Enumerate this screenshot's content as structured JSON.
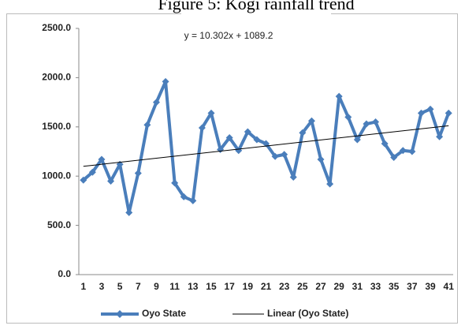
{
  "chart_data": {
    "type": "line",
    "title": "Figure 5: Kogi rainfall trend",
    "annotation": "y = 10.302x + 1089.2",
    "categories": [
      "1",
      null,
      "3",
      null,
      "5",
      null,
      "7",
      null,
      "9",
      null,
      "11",
      null,
      "13",
      null,
      "15",
      null,
      "17",
      null,
      "19",
      null,
      "21",
      null,
      "23",
      null,
      "25",
      null,
      "27",
      null,
      "29",
      null,
      "31",
      null,
      "33",
      null,
      "35",
      null,
      "37",
      null,
      "39",
      null,
      "41"
    ],
    "series": [
      {
        "name": "Oyo State",
        "color": "#4a7ebb",
        "values": [
          960,
          1040,
          1170,
          950,
          1120,
          630,
          1030,
          1520,
          1750,
          1960,
          930,
          790,
          750,
          1490,
          1640,
          1270,
          1390,
          1260,
          1450,
          1370,
          1330,
          1200,
          1220,
          990,
          1440,
          1560,
          1170,
          920,
          1810,
          1600,
          1370,
          1530,
          1550,
          1330,
          1190,
          1260,
          1250,
          1640,
          1680,
          1400,
          1640
        ]
      }
    ],
    "trendline": {
      "name": "Linear (Oyo State)",
      "slope": 10.302,
      "intercept": 1089.2,
      "color": "#000000"
    },
    "ylim": [
      0,
      2500
    ],
    "yticks": [
      {
        "value": 0,
        "label": "0.0"
      },
      {
        "value": 500,
        "label": "500.0"
      },
      {
        "value": 1000,
        "label": "1000.0"
      },
      {
        "value": 1500,
        "label": "1500.0"
      },
      {
        "value": 2000,
        "label": "2000.0"
      },
      {
        "value": 2500,
        "label": "2500.0"
      }
    ],
    "grid": false
  }
}
